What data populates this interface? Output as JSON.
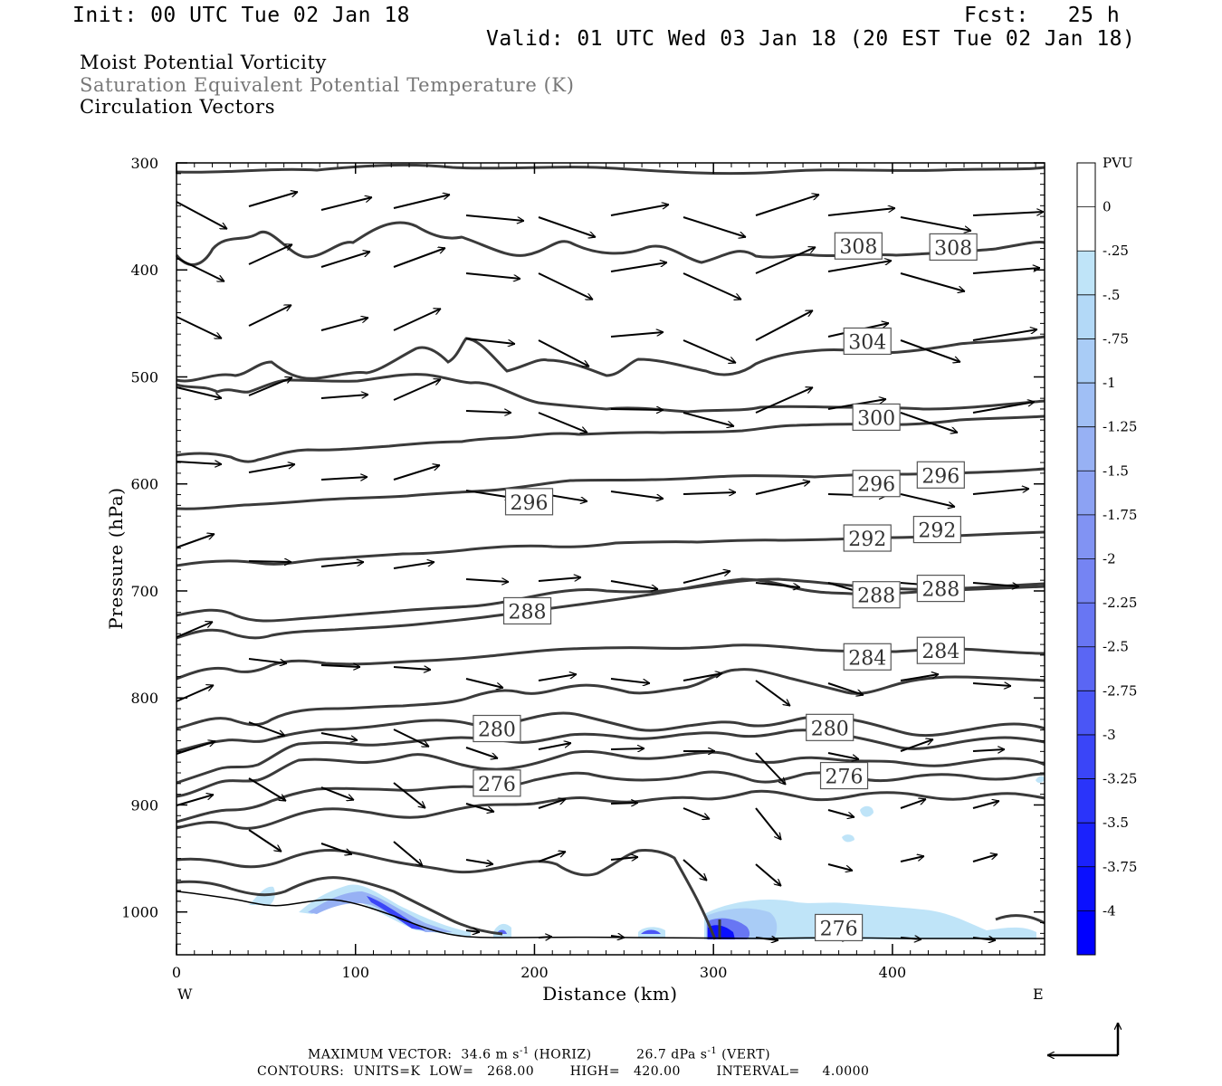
{
  "header": {
    "init": "Init: 00 UTC Tue 02 Jan 18",
    "fcst": "Fcst:   25 h",
    "valid": "Valid: 01 UTC Wed 03 Jan 18 (20 EST Tue 02 Jan 18)"
  },
  "legend": {
    "line1": "Moist Potential Vorticity",
    "line2": "Saturation Equivalent Potential Temperature (K)",
    "line3": "Circulation Vectors"
  },
  "footer": {
    "max_vector_label": "MAXIMUM VECTOR:",
    "horiz_value": "34.6 m s",
    "horiz_unit": "(HORIZ)",
    "vert_value": "26.7 dPa s",
    "vert_unit": "(VERT)",
    "exp": "-1",
    "contours": "CONTOURS:  UNITS=K  LOW=   268.00        HIGH=   420.00        INTERVAL=     4.0000"
  },
  "colors": {
    "contour": "#3a3a3a",
    "vector": "#000000",
    "pv_light": "#bfe4f8",
    "pv_dark": "#0000ff"
  },
  "chart_data": {
    "type": "cross-section",
    "xlabel": "Distance (km)",
    "ylabel": "Pressure (hPa)",
    "x_left_label": "W",
    "x_right_label": "E",
    "xlim": [
      0,
      485
    ],
    "ylim": [
      300,
      1040
    ],
    "x_ticks": [
      "0",
      "100",
      "200",
      "300",
      "400"
    ],
    "y_ticks": [
      "300",
      "400",
      "500",
      "600",
      "700",
      "800",
      "900",
      "1000"
    ],
    "colorbar": {
      "title": "PVU",
      "labels": [
        "0",
        "-.25",
        "-.5",
        "-.75",
        "-1",
        "-1.25",
        "-1.5",
        "-1.75",
        "-2",
        "-2.25",
        "-2.5",
        "-2.75",
        "-3",
        "-3.25",
        "-3.5",
        "-3.75",
        "-4"
      ],
      "colors": [
        "#ffffff",
        "#ffffff",
        "#bfe4f8",
        "#b3d9f7",
        "#a9ccf6",
        "#a0bff5",
        "#97b1f4",
        "#8ca2f3",
        "#8193f3",
        "#7584f3",
        "#6876f3",
        "#5a66f4",
        "#4a56f6",
        "#3a45f8",
        "#2a34fa",
        "#1b22fc",
        "#0b10fe",
        "#0000ff"
      ]
    },
    "contour_labels": [
      {
        "text": "308",
        "x": 381,
        "p": 378
      },
      {
        "text": "308",
        "x": 434,
        "p": 379
      },
      {
        "text": "304",
        "x": 386,
        "p": 467
      },
      {
        "text": "300",
        "x": 391,
        "p": 538
      },
      {
        "text": "296",
        "x": 197,
        "p": 617
      },
      {
        "text": "296",
        "x": 391,
        "p": 600
      },
      {
        "text": "296",
        "x": 427,
        "p": 592
      },
      {
        "text": "292",
        "x": 386,
        "p": 651
      },
      {
        "text": "292",
        "x": 425,
        "p": 643
      },
      {
        "text": "288",
        "x": 196,
        "p": 719
      },
      {
        "text": "288",
        "x": 391,
        "p": 704
      },
      {
        "text": "288",
        "x": 427,
        "p": 698
      },
      {
        "text": "284",
        "x": 386,
        "p": 762
      },
      {
        "text": "284",
        "x": 427,
        "p": 756
      },
      {
        "text": "280",
        "x": 179,
        "p": 829
      },
      {
        "text": "280",
        "x": 365,
        "p": 828
      },
      {
        "text": "276",
        "x": 179,
        "p": 880
      },
      {
        "text": "276",
        "x": 373,
        "p": 873
      },
      {
        "text": "276",
        "x": 370,
        "p": 1015
      }
    ]
  }
}
